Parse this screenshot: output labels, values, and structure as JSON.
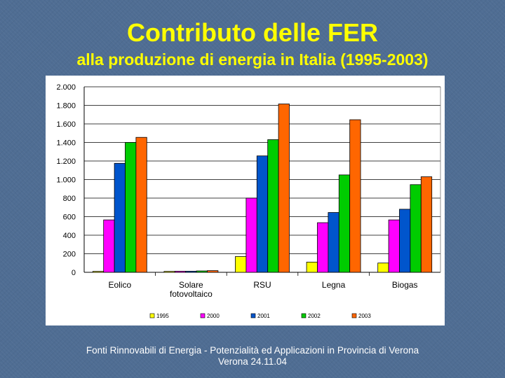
{
  "slide": {
    "title": "Contributo delle FER",
    "subtitle": "alla produzione di energia in Italia (1995-2003)",
    "footer_line1": "Fonti Rinnovabili di Energia - Potenzialità ed Applicazioni in Provincia di Verona",
    "footer_line2": "Verona 24.11.04"
  },
  "chart_data": {
    "type": "bar",
    "title": "",
    "xlabel": "",
    "ylabel": "",
    "ylim": [
      0,
      2000
    ],
    "yticks": [
      0,
      200,
      400,
      600,
      800,
      1000,
      1200,
      1400,
      1600,
      1800,
      2000
    ],
    "ytick_labels": [
      "0",
      "200",
      "400",
      "600",
      "800",
      "1.000",
      "1.200",
      "1.400",
      "1.600",
      "1.800",
      "2.000"
    ],
    "grid": true,
    "legend_position": "bottom",
    "categories": [
      [
        "Eolico"
      ],
      [
        "Solare",
        "fotovoltaico"
      ],
      [
        "RSU"
      ],
      [
        "Legna"
      ],
      [
        "Biogas"
      ]
    ],
    "series": [
      {
        "name": "1995",
        "color": "#ffff00",
        "values": [
          10,
          10,
          170,
          110,
          100
        ]
      },
      {
        "name": "2000",
        "color": "#ff00ff",
        "values": [
          565,
          12,
          800,
          535,
          565
        ]
      },
      {
        "name": "2001",
        "color": "#0055cc",
        "values": [
          1175,
          12,
          1255,
          645,
          680
        ]
      },
      {
        "name": "2002",
        "color": "#00cc00",
        "values": [
          1400,
          15,
          1430,
          1050,
          945
        ]
      },
      {
        "name": "2003",
        "color": "#ff6600",
        "values": [
          1455,
          18,
          1815,
          1645,
          1030
        ]
      }
    ]
  }
}
